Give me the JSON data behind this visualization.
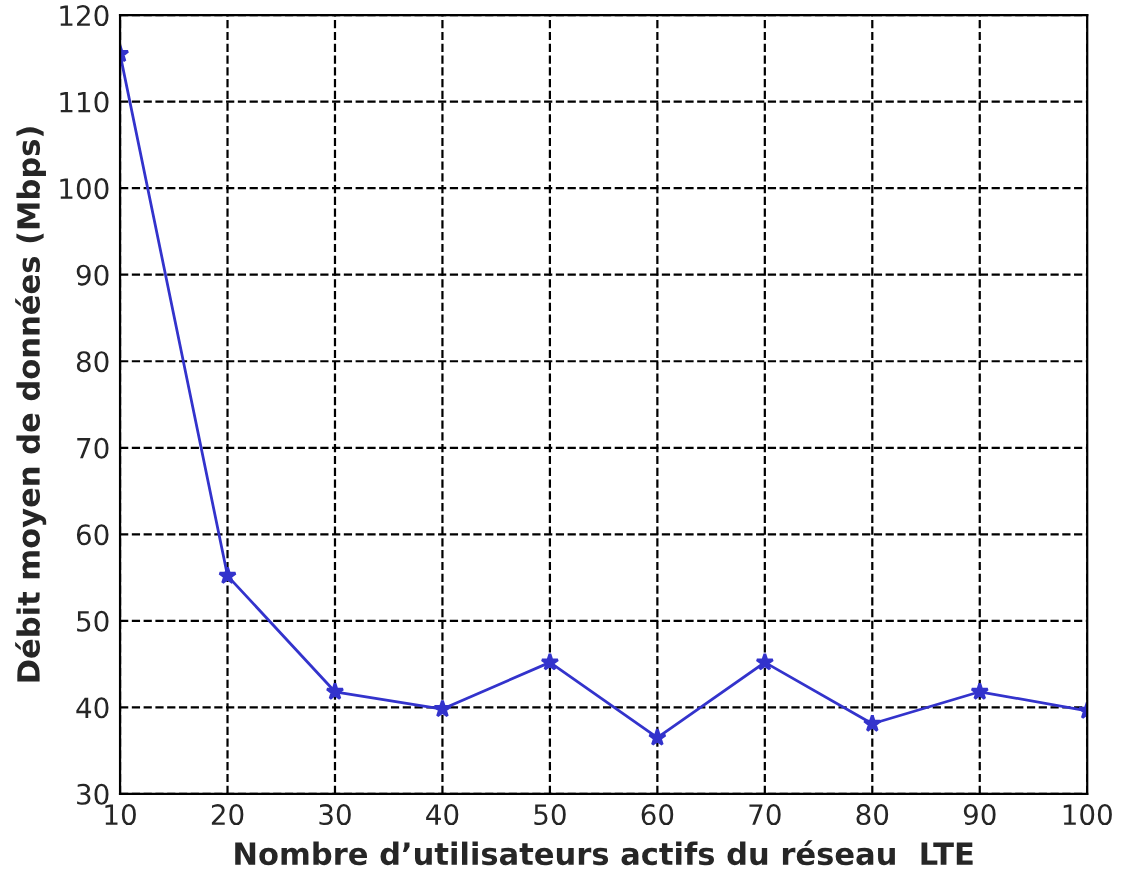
{
  "chart_data": {
    "type": "line",
    "xlabel": "Nombre d’utilisateurs actifs du réseau  LTE",
    "ylabel": "Débit moyen de données (Mbps)",
    "x": [
      10,
      20,
      30,
      40,
      50,
      60,
      70,
      80,
      90,
      100
    ],
    "series": [
      {
        "color": "#3333cc",
        "values": [
          115.5,
          55.2,
          41.8,
          39.8,
          45.2,
          36.5,
          45.2,
          38.1,
          41.8,
          39.6
        ]
      }
    ],
    "xlim": [
      10,
      100
    ],
    "xticks": [
      10,
      20,
      30,
      40,
      50,
      60,
      70,
      80,
      90,
      100
    ],
    "ylim": [
      30,
      120
    ],
    "yticks": [
      30,
      40,
      50,
      60,
      70,
      80,
      90,
      100,
      110,
      120
    ],
    "grid": true,
    "marker": "star",
    "line_style": "solid"
  }
}
